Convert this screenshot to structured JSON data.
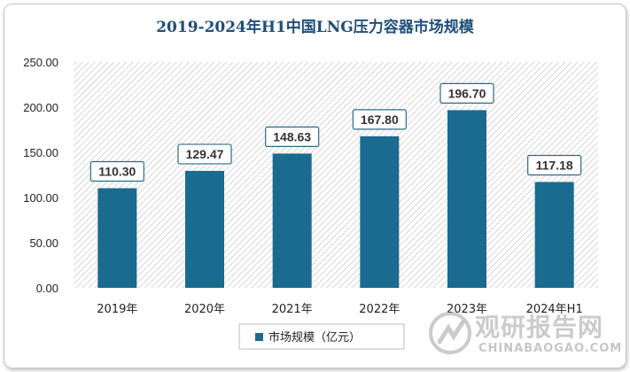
{
  "chart_data": {
    "type": "bar",
    "title": "2019-2024年H1中国LNG压力容器市场规模",
    "categories": [
      "2019年",
      "2020年",
      "2021年",
      "2022年",
      "2023年",
      "2024年H1"
    ],
    "series": [
      {
        "name": "市场规模（亿元）",
        "values": [
          110.3,
          129.47,
          148.63,
          167.8,
          196.7,
          117.18
        ]
      }
    ],
    "value_labels": [
      "110.30",
      "129.47",
      "148.63",
      "167.80",
      "196.70",
      "117.18"
    ],
    "y_ticks": [
      "0.00",
      "50.00",
      "100.00",
      "150.00",
      "200.00",
      "250.00"
    ],
    "ylim": [
      0,
      250
    ],
    "xlabel": "",
    "ylabel": "",
    "legend_position": "bottom",
    "bar_color": "#1b6a8f",
    "plot_background": "hatched-gray"
  },
  "watermark": {
    "brand": "观研报告网",
    "url": "CHINABAOGAO.COM"
  }
}
